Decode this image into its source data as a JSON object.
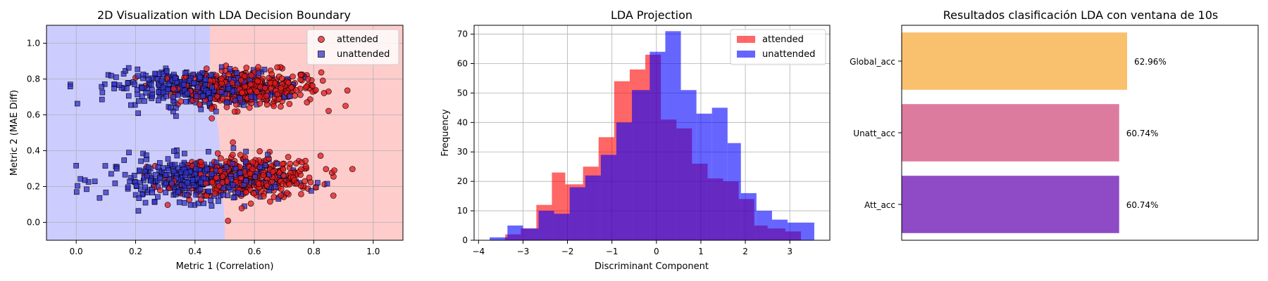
{
  "chart_data": [
    {
      "type": "scatter",
      "title": "2D Visualization with LDA Decision Boundary",
      "xlabel": "Metric 1 (Correlation)",
      "ylabel": "Metric 2 (MAE Diff)",
      "xlim": [
        -0.1,
        1.1
      ],
      "ylim": [
        -0.1,
        1.1
      ],
      "xticks": [
        "0.0",
        "0.2",
        "0.4",
        "0.6",
        "0.8",
        "1.0"
      ],
      "yticks": [
        "0.0",
        "0.2",
        "0.4",
        "0.6",
        "0.8",
        "1.0"
      ],
      "grid": true,
      "legend_position": "top-right",
      "regions": {
        "unattended_color": "#ccccff",
        "attended_color": "#ffcccc"
      },
      "series": [
        {
          "name": "attended",
          "marker": "circle",
          "color": "#e31a1c",
          "clusters": [
            {
              "x_mean": 0.58,
              "x_sd": 0.12,
              "y_mean": 0.75,
              "y_sd": 0.05,
              "count": 360,
              "x_min": 0.2,
              "x_max": 0.92
            },
            {
              "x_mean": 0.58,
              "x_sd": 0.12,
              "y_mean": 0.25,
              "y_sd": 0.06,
              "count": 360,
              "x_min": 0.12,
              "x_max": 0.93
            }
          ]
        },
        {
          "name": "unattended",
          "marker": "square",
          "color": "#3333cc",
          "clusters": [
            {
              "x_mean": 0.4,
              "x_sd": 0.14,
              "y_mean": 0.75,
              "y_sd": 0.05,
              "count": 360,
              "x_min": -0.02,
              "x_max": 0.85
            },
            {
              "x_mean": 0.4,
              "x_sd": 0.15,
              "y_mean": 0.24,
              "y_sd": 0.06,
              "count": 360,
              "x_min": 0.0,
              "x_max": 1.0
            }
          ]
        }
      ]
    },
    {
      "type": "bar",
      "subtype": "histogram",
      "title": "LDA Projection",
      "xlabel": "Discriminant Component",
      "ylabel": "Frequency",
      "xlim": [
        -4.1,
        3.9
      ],
      "ylim": [
        0,
        73
      ],
      "xticks": [
        "−4",
        "−3",
        "−2",
        "−1",
        "0",
        "1",
        "2",
        "3"
      ],
      "yticks": [
        "0",
        "10",
        "20",
        "30",
        "40",
        "50",
        "60",
        "70"
      ],
      "grid": true,
      "legend_position": "top-right",
      "series": [
        {
          "name": "attended",
          "color": "#ff0000",
          "alpha": 0.6,
          "bins": [
            [
              -3.4,
              -3.05,
              2
            ],
            [
              -3.05,
              -2.7,
              4
            ],
            [
              -2.7,
              -2.35,
              12
            ],
            [
              -2.35,
              -2.05,
              23
            ],
            [
              -2.05,
              -1.65,
              19
            ],
            [
              -1.65,
              -1.3,
              25
            ],
            [
              -1.3,
              -0.95,
              35
            ],
            [
              -0.95,
              -0.6,
              54
            ],
            [
              -0.6,
              -0.25,
              58
            ],
            [
              -0.25,
              0.1,
              63
            ],
            [
              0.1,
              0.45,
              41
            ],
            [
              0.45,
              0.8,
              38
            ],
            [
              0.8,
              1.15,
              26
            ],
            [
              1.15,
              1.5,
              21
            ],
            [
              1.5,
              1.85,
              20
            ],
            [
              1.85,
              2.2,
              14
            ],
            [
              2.2,
              2.5,
              5
            ],
            [
              2.5,
              2.9,
              4
            ],
            [
              2.9,
              3.25,
              3
            ]
          ]
        },
        {
          "name": "unattended",
          "color": "#0000ff",
          "alpha": 0.6,
          "bins": [
            [
              -3.75,
              -3.35,
              1
            ],
            [
              -3.35,
              -3.0,
              5
            ],
            [
              -3.0,
              -2.65,
              4
            ],
            [
              -2.65,
              -2.3,
              10
            ],
            [
              -2.3,
              -1.95,
              9
            ],
            [
              -1.95,
              -1.6,
              18
            ],
            [
              -1.6,
              -1.25,
              22
            ],
            [
              -1.25,
              -0.9,
              29
            ],
            [
              -0.9,
              -0.55,
              40
            ],
            [
              -0.55,
              -0.15,
              51
            ],
            [
              -0.15,
              0.2,
              64
            ],
            [
              0.2,
              0.55,
              71
            ],
            [
              0.55,
              0.9,
              51
            ],
            [
              0.9,
              1.25,
              43
            ],
            [
              1.25,
              1.6,
              45
            ],
            [
              1.6,
              1.9,
              33
            ],
            [
              1.9,
              2.25,
              16
            ],
            [
              2.25,
              2.6,
              10
            ],
            [
              2.6,
              2.95,
              7
            ],
            [
              2.95,
              3.55,
              6
            ]
          ]
        }
      ]
    },
    {
      "type": "bar",
      "orientation": "horizontal",
      "title": "Resultados clasificación LDA con ventana de 10s",
      "categories": [
        "Global_acc",
        "Unatt_acc",
        "Att_acc"
      ],
      "values": [
        62.96,
        60.74,
        60.74
      ],
      "labels": [
        "62.96%",
        "60.74%",
        "60.74%"
      ],
      "colors": [
        "#f9c06e",
        "#dd7b9e",
        "#8f4ac6"
      ],
      "xlim": [
        0,
        62.96
      ],
      "grid": false
    }
  ]
}
